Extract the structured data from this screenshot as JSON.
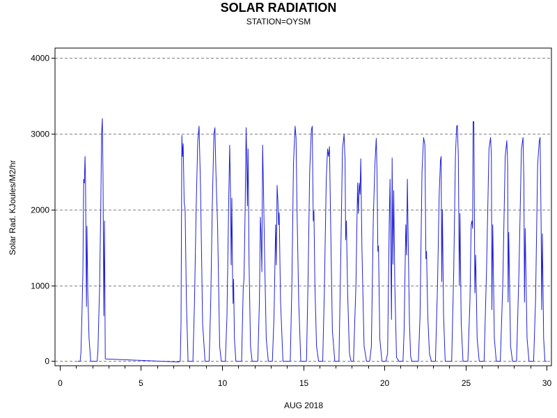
{
  "chart_data": {
    "type": "line",
    "title": "SOLAR RADIATION",
    "subtitle": "STATION=OYSM",
    "xlabel": "AUG 2018",
    "ylabel": "Solar Rad. KJoules/M2/hr",
    "xlim": [
      -0.3,
      30.3
    ],
    "ylim": [
      -60,
      4130
    ],
    "xticks": [
      0,
      5,
      10,
      15,
      20,
      25,
      30
    ],
    "yticks": [
      0,
      1000,
      2000,
      3000,
      4000
    ],
    "grid": {
      "horizontal_dashed": true,
      "vertical": false
    },
    "colors": {
      "line": "#2020d8",
      "grid": "#808080",
      "axis": "#000000"
    },
    "series": [
      {
        "points": [
          [
            1.1,
            0
          ],
          [
            1.25,
            0
          ],
          [
            1.3,
            120
          ],
          [
            1.37,
            700
          ],
          [
            1.42,
            1200
          ],
          [
            1.47,
            2400
          ],
          [
            1.51,
            2350
          ],
          [
            1.55,
            2700
          ],
          [
            1.58,
            2400
          ],
          [
            1.61,
            1600
          ],
          [
            1.64,
            720
          ],
          [
            1.67,
            1780
          ],
          [
            1.72,
            900
          ],
          [
            1.8,
            300
          ],
          [
            1.9,
            0
          ],
          [
            2.3,
            0
          ],
          [
            2.35,
            150
          ],
          [
            2.45,
            1000
          ],
          [
            2.52,
            2000
          ],
          [
            2.57,
            3000
          ],
          [
            2.62,
            3200
          ],
          [
            2.66,
            2400
          ],
          [
            2.71,
            600
          ],
          [
            2.75,
            1850
          ],
          [
            2.8,
            30
          ],
          [
            7.3,
            -10
          ],
          [
            7.42,
            0
          ],
          [
            7.47,
            500
          ],
          [
            7.52,
            2980
          ],
          [
            7.56,
            2700
          ],
          [
            7.6,
            2870
          ],
          [
            7.66,
            2100
          ],
          [
            7.72,
            2000
          ],
          [
            7.8,
            800
          ],
          [
            7.9,
            0
          ],
          [
            8.2,
            0
          ],
          [
            8.3,
            800
          ],
          [
            8.4,
            2000
          ],
          [
            8.5,
            2900
          ],
          [
            8.58,
            3100
          ],
          [
            8.67,
            2300
          ],
          [
            8.8,
            500
          ],
          [
            8.95,
            0
          ],
          [
            9.2,
            0
          ],
          [
            9.3,
            800
          ],
          [
            9.4,
            2100
          ],
          [
            9.5,
            3000
          ],
          [
            9.56,
            3080
          ],
          [
            9.62,
            2500
          ],
          [
            9.72,
            1800
          ],
          [
            9.85,
            200
          ],
          [
            9.95,
            0
          ],
          [
            10.2,
            0
          ],
          [
            10.3,
            600
          ],
          [
            10.4,
            2000
          ],
          [
            10.47,
            2850
          ],
          [
            10.52,
            2200
          ],
          [
            10.56,
            1270
          ],
          [
            10.6,
            2150
          ],
          [
            10.64,
            1200
          ],
          [
            10.68,
            760
          ],
          [
            10.71,
            1080
          ],
          [
            10.76,
            300
          ],
          [
            10.85,
            0
          ],
          [
            11.2,
            0
          ],
          [
            11.3,
            950
          ],
          [
            11.35,
            1100
          ],
          [
            11.42,
            2000
          ],
          [
            11.48,
            3080
          ],
          [
            11.52,
            2700
          ],
          [
            11.56,
            2050
          ],
          [
            11.6,
            2800
          ],
          [
            11.66,
            1300
          ],
          [
            11.75,
            200
          ],
          [
            11.85,
            0
          ],
          [
            12.2,
            0
          ],
          [
            12.3,
            800
          ],
          [
            12.36,
            1900
          ],
          [
            12.4,
            1700
          ],
          [
            12.45,
            1180
          ],
          [
            12.5,
            2850
          ],
          [
            12.55,
            2300
          ],
          [
            12.62,
            1400
          ],
          [
            12.72,
            300
          ],
          [
            12.85,
            0
          ],
          [
            13.1,
            0
          ],
          [
            13.2,
            600
          ],
          [
            13.3,
            1800
          ],
          [
            13.34,
            1270
          ],
          [
            13.39,
            2320
          ],
          [
            13.44,
            2100
          ],
          [
            13.48,
            1800
          ],
          [
            13.52,
            1960
          ],
          [
            13.6,
            800
          ],
          [
            13.75,
            0
          ],
          [
            14.2,
            0
          ],
          [
            14.3,
            1000
          ],
          [
            14.4,
            2600
          ],
          [
            14.5,
            3100
          ],
          [
            14.56,
            2950
          ],
          [
            14.62,
            2000
          ],
          [
            14.72,
            800
          ],
          [
            14.85,
            0
          ],
          [
            15.2,
            0
          ],
          [
            15.3,
            1100
          ],
          [
            15.4,
            2500
          ],
          [
            15.5,
            3050
          ],
          [
            15.56,
            3100
          ],
          [
            15.62,
            1850
          ],
          [
            15.66,
            1980
          ],
          [
            15.72,
            1000
          ],
          [
            15.82,
            200
          ],
          [
            15.95,
            0
          ],
          [
            16.2,
            0
          ],
          [
            16.3,
            900
          ],
          [
            16.42,
            2400
          ],
          [
            16.5,
            2800
          ],
          [
            16.56,
            2700
          ],
          [
            16.62,
            2830
          ],
          [
            16.7,
            1700
          ],
          [
            16.8,
            400
          ],
          [
            16.95,
            0
          ],
          [
            17.2,
            0
          ],
          [
            17.3,
            1200
          ],
          [
            17.42,
            2800
          ],
          [
            17.52,
            2990
          ],
          [
            17.58,
            2650
          ],
          [
            17.62,
            1600
          ],
          [
            17.66,
            1850
          ],
          [
            17.74,
            900
          ],
          [
            17.85,
            100
          ],
          [
            17.95,
            0
          ],
          [
            18.1,
            0
          ],
          [
            18.25,
            1000
          ],
          [
            18.35,
            2350
          ],
          [
            18.4,
            1950
          ],
          [
            18.45,
            2350
          ],
          [
            18.5,
            2200
          ],
          [
            18.55,
            2670
          ],
          [
            18.62,
            1500
          ],
          [
            18.75,
            200
          ],
          [
            18.9,
            0
          ],
          [
            19.1,
            0
          ],
          [
            19.2,
            200
          ],
          [
            19.32,
            1900
          ],
          [
            19.42,
            2600
          ],
          [
            19.5,
            2940
          ],
          [
            19.55,
            2500
          ],
          [
            19.6,
            1450
          ],
          [
            19.64,
            1520
          ],
          [
            19.72,
            300
          ],
          [
            19.85,
            0
          ],
          [
            20.1,
            0
          ],
          [
            20.2,
            100
          ],
          [
            20.3,
            1800
          ],
          [
            20.35,
            2400
          ],
          [
            20.4,
            1400
          ],
          [
            20.44,
            550
          ],
          [
            20.48,
            2680
          ],
          [
            20.53,
            1280
          ],
          [
            20.58,
            2250
          ],
          [
            20.65,
            1000
          ],
          [
            20.75,
            50
          ],
          [
            20.9,
            0
          ],
          [
            21.15,
            0
          ],
          [
            21.22,
            400
          ],
          [
            21.32,
            1800
          ],
          [
            21.37,
            1400
          ],
          [
            21.42,
            2400
          ],
          [
            21.47,
            1600
          ],
          [
            21.55,
            500
          ],
          [
            21.62,
            60
          ],
          [
            21.7,
            0
          ],
          [
            21.8,
            0
          ],
          [
            22.1,
            0
          ],
          [
            22.2,
            600
          ],
          [
            22.32,
            2500
          ],
          [
            22.42,
            2950
          ],
          [
            22.5,
            2850
          ],
          [
            22.56,
            1350
          ],
          [
            22.6,
            1450
          ],
          [
            22.68,
            600
          ],
          [
            22.78,
            100
          ],
          [
            22.9,
            0
          ],
          [
            23.15,
            0
          ],
          [
            23.28,
            1000
          ],
          [
            23.38,
            2200
          ],
          [
            23.46,
            2650
          ],
          [
            23.5,
            2700
          ],
          [
            23.54,
            1050
          ],
          [
            23.58,
            2000
          ],
          [
            23.65,
            600
          ],
          [
            23.75,
            0
          ],
          [
            24.15,
            0
          ],
          [
            24.28,
            1200
          ],
          [
            24.38,
            2700
          ],
          [
            24.46,
            3100
          ],
          [
            24.5,
            3110
          ],
          [
            24.56,
            2700
          ],
          [
            24.62,
            1000
          ],
          [
            24.66,
            1950
          ],
          [
            24.74,
            500
          ],
          [
            24.85,
            0
          ],
          [
            25.15,
            0
          ],
          [
            25.28,
            800
          ],
          [
            25.35,
            1800
          ],
          [
            25.4,
            1850
          ],
          [
            25.44,
            1750
          ],
          [
            25.47,
            3160
          ],
          [
            25.52,
            3160
          ],
          [
            25.58,
            900
          ],
          [
            25.63,
            1400
          ],
          [
            25.72,
            300
          ],
          [
            25.85,
            0
          ],
          [
            26.15,
            0
          ],
          [
            26.3,
            1200
          ],
          [
            26.45,
            2800
          ],
          [
            26.55,
            2950
          ],
          [
            26.6,
            2700
          ],
          [
            26.63,
            680
          ],
          [
            26.68,
            1800
          ],
          [
            26.78,
            300
          ],
          [
            26.9,
            0
          ],
          [
            27.15,
            0
          ],
          [
            27.3,
            1000
          ],
          [
            27.45,
            2700
          ],
          [
            27.55,
            2910
          ],
          [
            27.6,
            2600
          ],
          [
            27.63,
            780
          ],
          [
            27.67,
            1700
          ],
          [
            27.78,
            200
          ],
          [
            27.9,
            0
          ],
          [
            28.15,
            0
          ],
          [
            28.3,
            1200
          ],
          [
            28.45,
            2800
          ],
          [
            28.55,
            2950
          ],
          [
            28.6,
            2400
          ],
          [
            28.64,
            780
          ],
          [
            28.68,
            1750
          ],
          [
            28.8,
            300
          ],
          [
            28.92,
            0
          ],
          [
            29.2,
            0
          ],
          [
            29.32,
            800
          ],
          [
            29.45,
            2600
          ],
          [
            29.55,
            2900
          ],
          [
            29.6,
            2950
          ],
          [
            29.66,
            1900
          ],
          [
            29.7,
            680
          ],
          [
            29.74,
            1680
          ],
          [
            29.82,
            300
          ],
          [
            29.9,
            0
          ],
          [
            30.0,
            0
          ]
        ]
      }
    ]
  }
}
